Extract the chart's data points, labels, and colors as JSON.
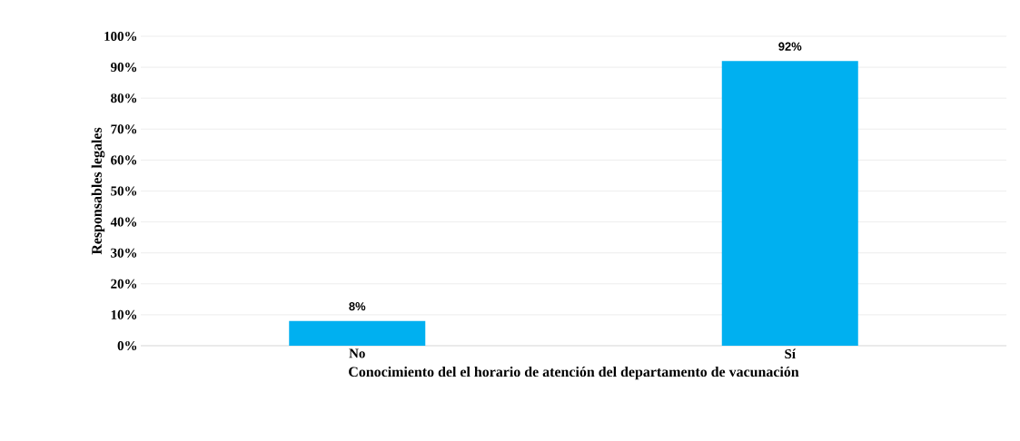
{
  "chart_data": {
    "type": "bar",
    "xlabel": "Conocimiento del  el horario de atención del departamento de vacunación",
    "ylabel": "Responsables legales",
    "categories": [
      "No",
      "Sí"
    ],
    "values": [
      8,
      92
    ],
    "value_labels": [
      "8%",
      "92%"
    ],
    "color": "#00b0f0",
    "ylim": [
      0,
      100
    ],
    "yticks": [
      {
        "value": 0,
        "label": "0%"
      },
      {
        "value": 10,
        "label": "10%"
      },
      {
        "value": 20,
        "label": "20%"
      },
      {
        "value": 30,
        "label": "30%"
      },
      {
        "value": 40,
        "label": "40%"
      },
      {
        "value": 50,
        "label": "50%"
      },
      {
        "value": 60,
        "label": "60%"
      },
      {
        "value": 70,
        "label": "70%"
      },
      {
        "value": 80,
        "label": "80%"
      },
      {
        "value": 90,
        "label": "90%"
      },
      {
        "value": 100,
        "label": "100%"
      }
    ],
    "grid": "y"
  }
}
